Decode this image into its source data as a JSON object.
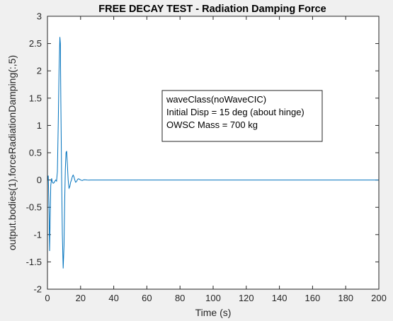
{
  "colors": {
    "figure_bg": "#f0f0f0",
    "axes_bg": "#ffffff",
    "axis_line": "#262626",
    "series": "#0072bd"
  },
  "chart_data": {
    "type": "line",
    "title": "FREE DECAY TEST - Radiation Damping Force",
    "xlabel": "Time (s)",
    "ylabel": "output.bodies(1).forceRadiationDamping(:,5)",
    "xlim": [
      0,
      200
    ],
    "ylim": [
      -2,
      3
    ],
    "xticks": [
      0,
      20,
      40,
      60,
      80,
      100,
      120,
      140,
      160,
      180,
      200
    ],
    "yticks": [
      -2,
      -1.5,
      -1,
      -0.5,
      0,
      0.5,
      1,
      1.5,
      2,
      2.5,
      3
    ],
    "grid": false,
    "annotation": {
      "lines": [
        "waveClass(noWaveCIC)",
        "Initial Disp = 15 deg (about hinge)",
        "OWSC Mass = 700 kg"
      ],
      "placement": "upper-middle"
    },
    "series": [
      {
        "x": [
          0,
          0.5,
          1,
          1.3,
          1.6,
          2,
          2.5,
          3,
          3.5,
          4,
          4.5,
          5,
          5.5,
          6,
          6.5,
          7,
          7.5,
          7.8,
          8.1,
          8.5,
          9,
          9.5,
          10,
          10.4,
          10.8,
          11.2,
          11.6,
          12,
          12.5,
          13,
          13.5,
          14,
          14.5,
          15,
          15.5,
          16,
          16.5,
          17,
          17.5,
          18,
          18.5,
          19,
          19.5,
          20,
          21,
          22,
          23,
          24,
          25,
          26,
          30,
          40,
          60,
          100,
          150,
          200
        ],
        "y": [
          0,
          0.08,
          -0.6,
          -1.3,
          -0.8,
          -0.1,
          0.03,
          -0.04,
          -0.06,
          -0.05,
          -0.02,
          0,
          -0.02,
          0.15,
          1.0,
          2.0,
          2.62,
          2.5,
          1.4,
          0.2,
          -1.0,
          -1.62,
          -1.2,
          -0.4,
          0.2,
          0.5,
          0.53,
          0.3,
          0,
          -0.15,
          -0.12,
          -0.04,
          0,
          0.06,
          0.09,
          0.06,
          0,
          -0.04,
          -0.03,
          0,
          0.02,
          0.02,
          0.01,
          0,
          -0.01,
          0.005,
          0.003,
          0,
          -0.002,
          0,
          0,
          0,
          0,
          0,
          0,
          0
        ]
      }
    ]
  }
}
